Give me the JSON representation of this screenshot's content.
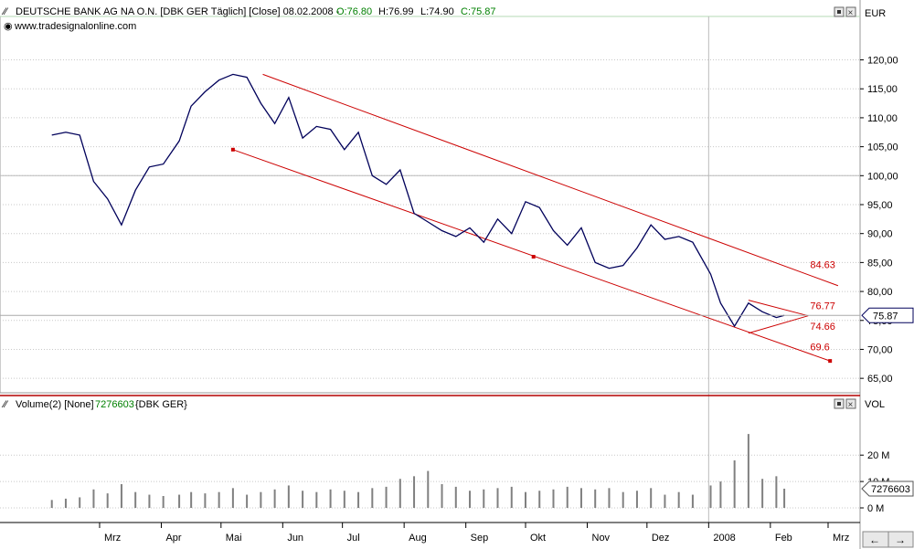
{
  "price_panel": {
    "indicator_icon": "line-chart-icon",
    "title": "DEUTSCHE BANK AG NA O.N. [DBK GER  Täglich] [Close] 08.02.2008 -",
    "open": "O:76.80",
    "high": "H:76.99",
    "low": "L:74.90",
    "close": "C:75.87",
    "source": "www.tradesignalonline.com",
    "unit": "EUR"
  },
  "volume_panel": {
    "indicator_icon": "line-chart-icon",
    "title": "Volume(2) [None]",
    "last_value": "7276603",
    "symbol": "{DBK GER}",
    "unit": "VOL"
  },
  "colors": {
    "price_line": "#00005a",
    "channel": "#cc0000",
    "grid": "#c8c8c8",
    "volume": "#808080",
    "separator": "#b40000",
    "hline": "#b4d8b4"
  },
  "chart_data": [
    {
      "type": "line",
      "title": "DEUTSCHE BANK AG NA O.N. [DBK GER  Täglich] [Close] 08.02.2008",
      "ylabel": "EUR",
      "ylim": [
        62.5,
        127.5
      ],
      "y_ticks": [
        "65,00",
        "70,00",
        "75,00",
        "80,00",
        "85,00",
        "90,00",
        "95,00",
        "100,00",
        "105,00",
        "110,00",
        "115,00",
        "120,00"
      ],
      "x_ticks": [
        "Mrz",
        "Apr",
        "Mai",
        "Jun",
        "Jul",
        "Aug",
        "Sep",
        "Okt",
        "Nov",
        "Dez",
        "2008",
        "Feb",
        "Mrz"
      ],
      "x": [
        "2007-02-05",
        "2007-02-12",
        "2007-02-19",
        "2007-02-26",
        "2007-03-05",
        "2007-03-12",
        "2007-03-19",
        "2007-03-26",
        "2007-04-02",
        "2007-04-10",
        "2007-04-16",
        "2007-04-23",
        "2007-04-30",
        "2007-05-07",
        "2007-05-14",
        "2007-05-21",
        "2007-05-28",
        "2007-06-04",
        "2007-06-11",
        "2007-06-18",
        "2007-06-25",
        "2007-07-02",
        "2007-07-09",
        "2007-07-16",
        "2007-07-23",
        "2007-07-30",
        "2007-08-06",
        "2007-08-13",
        "2007-08-20",
        "2007-08-27",
        "2007-09-03",
        "2007-09-10",
        "2007-09-17",
        "2007-09-24",
        "2007-10-01",
        "2007-10-08",
        "2007-10-15",
        "2007-10-22",
        "2007-10-29",
        "2007-11-05",
        "2007-11-12",
        "2007-11-19",
        "2007-11-26",
        "2007-12-03",
        "2007-12-10",
        "2007-12-17",
        "2007-12-24",
        "2008-01-02",
        "2008-01-07",
        "2008-01-14",
        "2008-01-21",
        "2008-01-28",
        "2008-02-04",
        "2008-02-08"
      ],
      "series": [
        {
          "values": [
            107.0,
            107.5,
            107.0,
            99.0,
            96.0,
            91.5,
            97.5,
            101.5,
            102.0,
            106.0,
            112.0,
            114.5,
            116.5,
            117.5,
            117.0,
            112.5,
            109.0,
            113.5,
            106.5,
            108.5,
            108.0,
            104.5,
            107.5,
            100.0,
            98.5,
            101.0,
            93.5,
            92.0,
            90.5,
            89.5,
            91.0,
            88.5,
            92.5,
            90.0,
            95.5,
            94.5,
            90.5,
            88.0,
            91.0,
            85.0,
            84.0,
            84.5,
            87.5,
            91.5,
            89.0,
            89.5,
            88.5,
            83.0,
            78.0,
            74.0,
            78.0,
            76.5,
            75.5,
            75.87
          ]
        }
      ],
      "annotations": [
        "84.63",
        "76.77",
        "74.66",
        "69.6"
      ],
      "last_value_marker": "75.87",
      "grid": true
    },
    {
      "type": "bar",
      "title": "Volume(2) [None] 7276603 {DBK GER}",
      "ylabel": "VOL",
      "y_ticks": [
        "0 M",
        "10 M",
        "20 M"
      ],
      "last_value": "7276603",
      "series": [
        {
          "values": [
            3.0,
            3.5,
            4.0,
            7.0,
            5.5,
            9.0,
            6.0,
            5.0,
            4.5,
            5.0,
            6.0,
            5.5,
            6.0,
            7.5,
            5.0,
            6.0,
            7.0,
            8.5,
            6.5,
            6.0,
            7.0,
            6.5,
            6.0,
            7.5,
            8.0,
            11.0,
            12.0,
            14.0,
            9.0,
            8.0,
            6.5,
            7.0,
            7.5,
            8.0,
            6.0,
            6.5,
            7.0,
            8.0,
            7.5,
            7.0,
            7.5,
            6.0,
            6.5,
            7.5,
            5.0,
            6.0,
            5.0,
            8.5,
            10.0,
            18.0,
            28.0,
            11.0,
            12.0,
            7.28
          ]
        }
      ]
    }
  ]
}
